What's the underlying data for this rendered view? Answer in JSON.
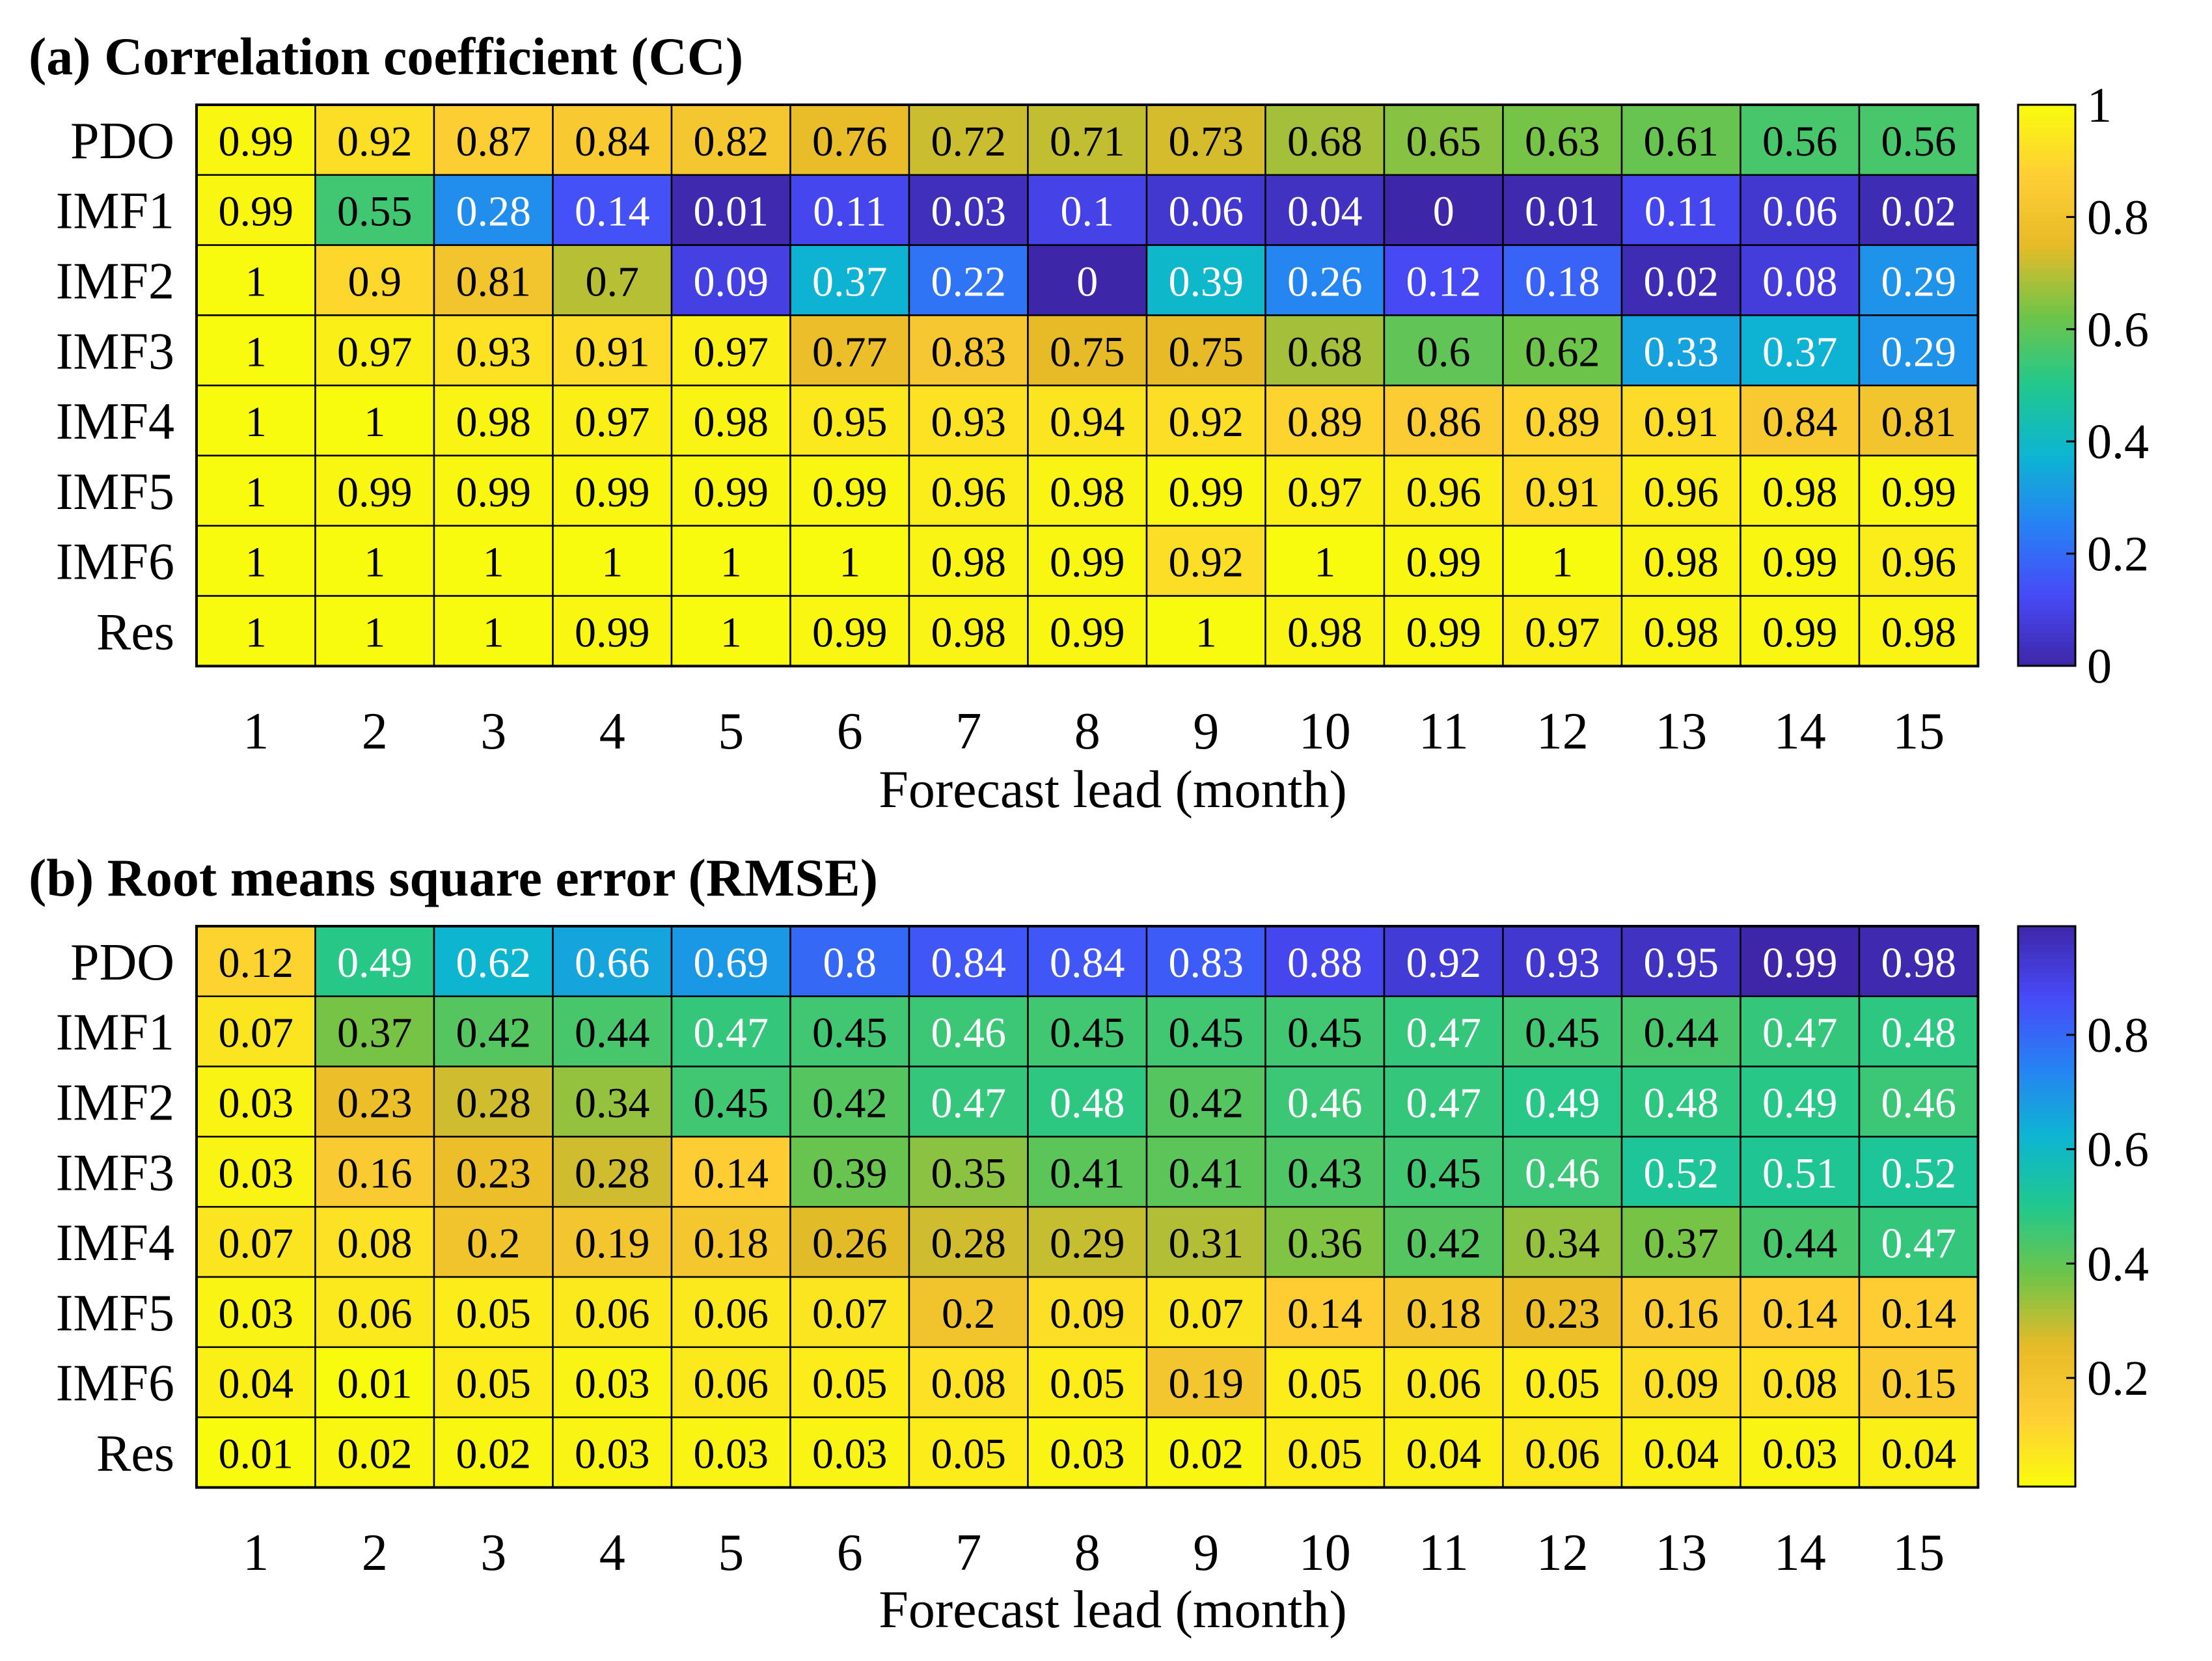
{
  "chart_data": [
    {
      "type": "heatmap",
      "panel": "a",
      "title": "(a) Correlation coefficient (CC)",
      "xlabel": "Forecast lead (month)",
      "ylabel": "",
      "x": [
        "1",
        "2",
        "3",
        "4",
        "5",
        "6",
        "7",
        "8",
        "9",
        "10",
        "11",
        "12",
        "13",
        "14",
        "15"
      ],
      "rows": [
        "PDO",
        "IMF1",
        "IMF2",
        "IMF3",
        "IMF4",
        "IMF5",
        "IMF6",
        "Res"
      ],
      "values": [
        [
          0.99,
          0.92,
          0.87,
          0.84,
          0.82,
          0.76,
          0.72,
          0.71,
          0.73,
          0.68,
          0.65,
          0.63,
          0.61,
          0.56,
          0.56
        ],
        [
          0.99,
          0.55,
          0.28,
          0.14,
          0.01,
          0.11,
          0.03,
          0.1,
          0.06,
          0.04,
          0,
          0.01,
          0.11,
          0.06,
          0.02
        ],
        [
          1,
          0.9,
          0.81,
          0.7,
          0.09,
          0.37,
          0.22,
          0,
          0.39,
          0.26,
          0.12,
          0.18,
          0.02,
          0.08,
          0.29
        ],
        [
          1,
          0.97,
          0.93,
          0.91,
          0.97,
          0.77,
          0.83,
          0.75,
          0.75,
          0.68,
          0.6,
          0.62,
          0.33,
          0.37,
          0.29
        ],
        [
          1,
          1,
          0.98,
          0.97,
          0.98,
          0.95,
          0.93,
          0.94,
          0.92,
          0.89,
          0.86,
          0.89,
          0.91,
          0.84,
          0.81
        ],
        [
          1,
          0.99,
          0.99,
          0.99,
          0.99,
          0.99,
          0.96,
          0.98,
          0.99,
          0.97,
          0.96,
          0.91,
          0.96,
          0.98,
          0.99
        ],
        [
          1,
          1,
          1,
          1,
          1,
          1,
          0.98,
          0.99,
          0.92,
          1,
          0.99,
          1,
          0.98,
          0.99,
          0.96
        ],
        [
          1,
          1,
          1,
          0.99,
          1,
          0.99,
          0.98,
          0.99,
          1,
          0.98,
          0.99,
          0.97,
          0.98,
          0.99,
          0.98
        ]
      ],
      "colormap": "parula",
      "color_reversed": false,
      "clim": [
        0,
        1
      ],
      "colorbar_ticks": [
        0,
        0.2,
        0.4,
        0.6,
        0.8,
        1
      ],
      "colorbar_tick_labels": [
        "0",
        "0.2",
        "0.4",
        "0.6",
        "0.8",
        "1"
      ],
      "dark_text_threshold": 0.45
    },
    {
      "type": "heatmap",
      "panel": "b",
      "title": "(b) Root means square error (RMSE)",
      "xlabel": "Forecast lead (month)",
      "ylabel": "",
      "x": [
        "1",
        "2",
        "3",
        "4",
        "5",
        "6",
        "7",
        "8",
        "9",
        "10",
        "11",
        "12",
        "13",
        "14",
        "15"
      ],
      "rows": [
        "PDO",
        "IMF1",
        "IMF2",
        "IMF3",
        "IMF4",
        "IMF5",
        "IMF6",
        "Res"
      ],
      "values": [
        [
          0.12,
          0.49,
          0.62,
          0.66,
          0.69,
          0.8,
          0.84,
          0.84,
          0.83,
          0.88,
          0.92,
          0.93,
          0.95,
          0.99,
          0.98
        ],
        [
          0.07,
          0.37,
          0.42,
          0.44,
          0.47,
          0.45,
          0.46,
          0.45,
          0.45,
          0.45,
          0.47,
          0.45,
          0.44,
          0.47,
          0.48
        ],
        [
          0.03,
          0.23,
          0.28,
          0.34,
          0.45,
          0.42,
          0.47,
          0.48,
          0.42,
          0.46,
          0.47,
          0.49,
          0.48,
          0.49,
          0.46
        ],
        [
          0.03,
          0.16,
          0.23,
          0.28,
          0.14,
          0.39,
          0.35,
          0.41,
          0.41,
          0.43,
          0.45,
          0.46,
          0.52,
          0.51,
          0.52
        ],
        [
          0.07,
          0.08,
          0.2,
          0.19,
          0.18,
          0.26,
          0.28,
          0.29,
          0.31,
          0.36,
          0.42,
          0.34,
          0.37,
          0.44,
          0.47
        ],
        [
          0.03,
          0.06,
          0.05,
          0.06,
          0.06,
          0.07,
          0.2,
          0.09,
          0.07,
          0.14,
          0.18,
          0.23,
          0.16,
          0.14,
          0.14
        ],
        [
          0.04,
          0.01,
          0.05,
          0.03,
          0.06,
          0.05,
          0.08,
          0.05,
          0.19,
          0.05,
          0.06,
          0.05,
          0.09,
          0.08,
          0.15
        ],
        [
          0.01,
          0.02,
          0.02,
          0.03,
          0.03,
          0.03,
          0.05,
          0.03,
          0.02,
          0.05,
          0.04,
          0.06,
          0.04,
          0.03,
          0.04
        ]
      ],
      "colormap": "parula",
      "color_reversed": true,
      "clim": [
        0.01,
        0.99
      ],
      "colorbar_ticks": [
        0.2,
        0.4,
        0.6,
        0.8
      ],
      "colorbar_tick_labels": [
        "0.2",
        "0.4",
        "0.6",
        "0.8"
      ],
      "dark_text_threshold": 0.55
    }
  ]
}
